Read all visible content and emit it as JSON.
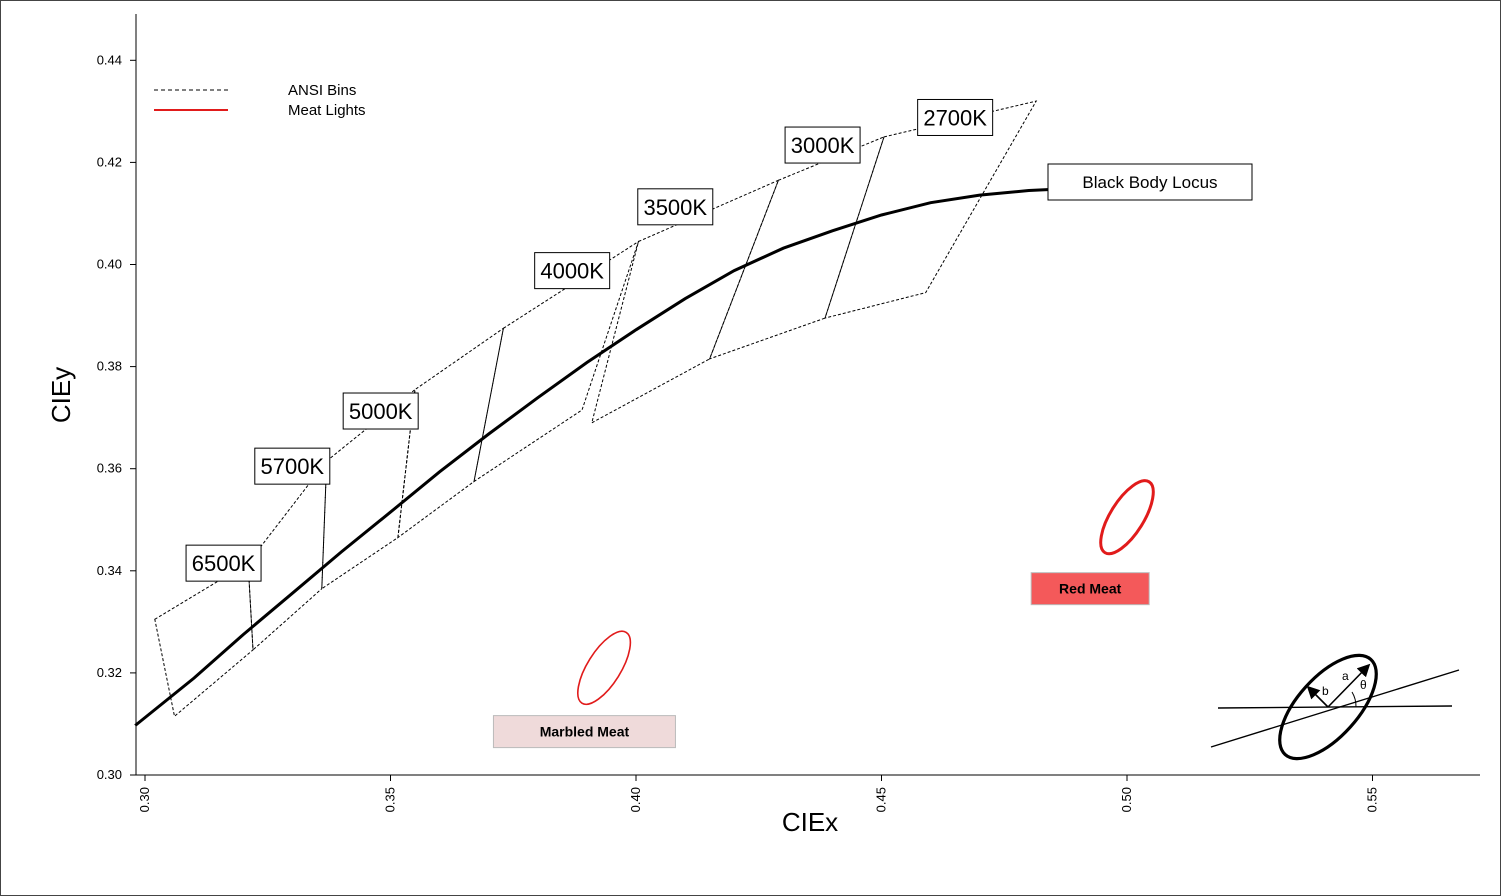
{
  "chart_data": {
    "type": "line",
    "title": "",
    "xlabel": "CIEx",
    "ylabel": "CIEy",
    "xlim": [
      0.3,
      0.57
    ],
    "ylim": [
      0.3,
      0.452
    ],
    "grid": false,
    "x_ticks": [
      {
        "value": 0.3,
        "label": "0.30"
      },
      {
        "value": 0.35,
        "label": "0.35"
      },
      {
        "value": 0.4,
        "label": "0.40"
      },
      {
        "value": 0.45,
        "label": "0.45"
      },
      {
        "value": 0.5,
        "label": "0.50"
      },
      {
        "value": 0.55,
        "label": "0.55"
      }
    ],
    "y_ticks": [
      {
        "value": 0.3,
        "label": "0.30"
      },
      {
        "value": 0.32,
        "label": "0.32"
      },
      {
        "value": 0.34,
        "label": "0.34"
      },
      {
        "value": 0.36,
        "label": "0.36"
      },
      {
        "value": 0.38,
        "label": "0.38"
      },
      {
        "value": 0.4,
        "label": "0.40"
      },
      {
        "value": 0.42,
        "label": "0.42"
      },
      {
        "value": 0.44,
        "label": "0.44"
      }
    ],
    "legend": {
      "placement": "top-left",
      "entries": [
        {
          "label": "ANSI Bins",
          "style": "dashed",
          "color": "#000000"
        },
        {
          "label": "Meat Lights",
          "style": "solid",
          "color": "#e11b1b"
        }
      ]
    },
    "black_body_locus": {
      "label": "Black Body Locus",
      "color": "#000000",
      "x": [
        0.298,
        0.31,
        0.32,
        0.33,
        0.34,
        0.35,
        0.36,
        0.37,
        0.38,
        0.39,
        0.4,
        0.41,
        0.42,
        0.43,
        0.44,
        0.45,
        0.46,
        0.47,
        0.48,
        0.487
      ],
      "y": [
        0.3097,
        0.319,
        0.3275,
        0.3356,
        0.3437,
        0.3515,
        0.3594,
        0.3668,
        0.3739,
        0.3808,
        0.3872,
        0.3933,
        0.3988,
        0.4032,
        0.4066,
        0.4097,
        0.4121,
        0.4136,
        0.4145,
        0.4148
      ]
    },
    "ansi_bins": [
      {
        "label": "6500K",
        "label_pos": [
          0.316,
          0.3415
        ],
        "points": [
          [
            0.302,
            0.3305
          ],
          [
            0.321,
            0.3415
          ],
          [
            0.322,
            0.3245
          ],
          [
            0.306,
            0.3115
          ]
        ]
      },
      {
        "label": "5700K",
        "label_pos": [
          0.33,
          0.3605
        ],
        "points": [
          [
            0.321,
            0.3415
          ],
          [
            0.337,
            0.3615
          ],
          [
            0.336,
            0.3365
          ],
          [
            0.322,
            0.3245
          ]
        ]
      },
      {
        "label": "5000K",
        "label_pos": [
          0.348,
          0.3713
        ],
        "points": [
          [
            0.337,
            0.3615
          ],
          [
            0.355,
            0.3755
          ],
          [
            0.3515,
            0.3465
          ],
          [
            0.336,
            0.3365
          ]
        ]
      },
      {
        "label": "4000K",
        "label_pos": [
          0.387,
          0.3988
        ],
        "points": [
          [
            0.3515,
            0.3465
          ],
          [
            0.355,
            0.3755
          ],
          [
            0.373,
            0.3875
          ],
          [
            0.367,
            0.3575
          ]
        ]
      },
      {
        "label": "3500K",
        "label_pos": [
          0.408,
          0.4113
        ],
        "points": [
          [
            0.373,
            0.3875
          ],
          [
            0.4005,
            0.4045
          ],
          [
            0.389,
            0.3715
          ],
          [
            0.367,
            0.3575
          ]
        ]
      },
      {
        "label": "3000K",
        "label_pos": [
          0.438,
          0.4234
        ],
        "points": [
          [
            0.4005,
            0.4045
          ],
          [
            0.429,
            0.4165
          ],
          [
            0.415,
            0.3815
          ],
          [
            0.391,
            0.369
          ]
        ]
      },
      {
        "label": "2700K",
        "label_pos": [
          0.465,
          0.4288
        ],
        "points": [
          [
            0.429,
            0.4165
          ],
          [
            0.4505,
            0.425
          ],
          [
            0.4385,
            0.3895
          ],
          [
            0.415,
            0.3815
          ]
        ]
      },
      {
        "label": "",
        "label_pos": null,
        "points": [
          [
            0.4505,
            0.425
          ],
          [
            0.4815,
            0.432
          ],
          [
            0.459,
            0.3945
          ],
          [
            0.4385,
            0.3895
          ]
        ]
      }
    ],
    "meat_lights": [
      {
        "label": "Marbled Meat",
        "center": [
          0.3935,
          0.321
        ],
        "a": 0.0085,
        "b": 0.0034,
        "theta_deg": 58,
        "color": "#e11b1b",
        "label_bg": "#efdada",
        "label_pos": [
          0.3895,
          0.3085
        ]
      },
      {
        "label": "Red Meat",
        "center": [
          0.5,
          0.3505
        ],
        "a": 0.0085,
        "b": 0.0034,
        "theta_deg": 58,
        "color": "#e11b1b",
        "label_bg": "#f4595a",
        "label_pos": [
          0.4925,
          0.3365
        ]
      }
    ],
    "inset": {
      "description_labels": [
        "a",
        "b",
        "θ"
      ]
    }
  }
}
